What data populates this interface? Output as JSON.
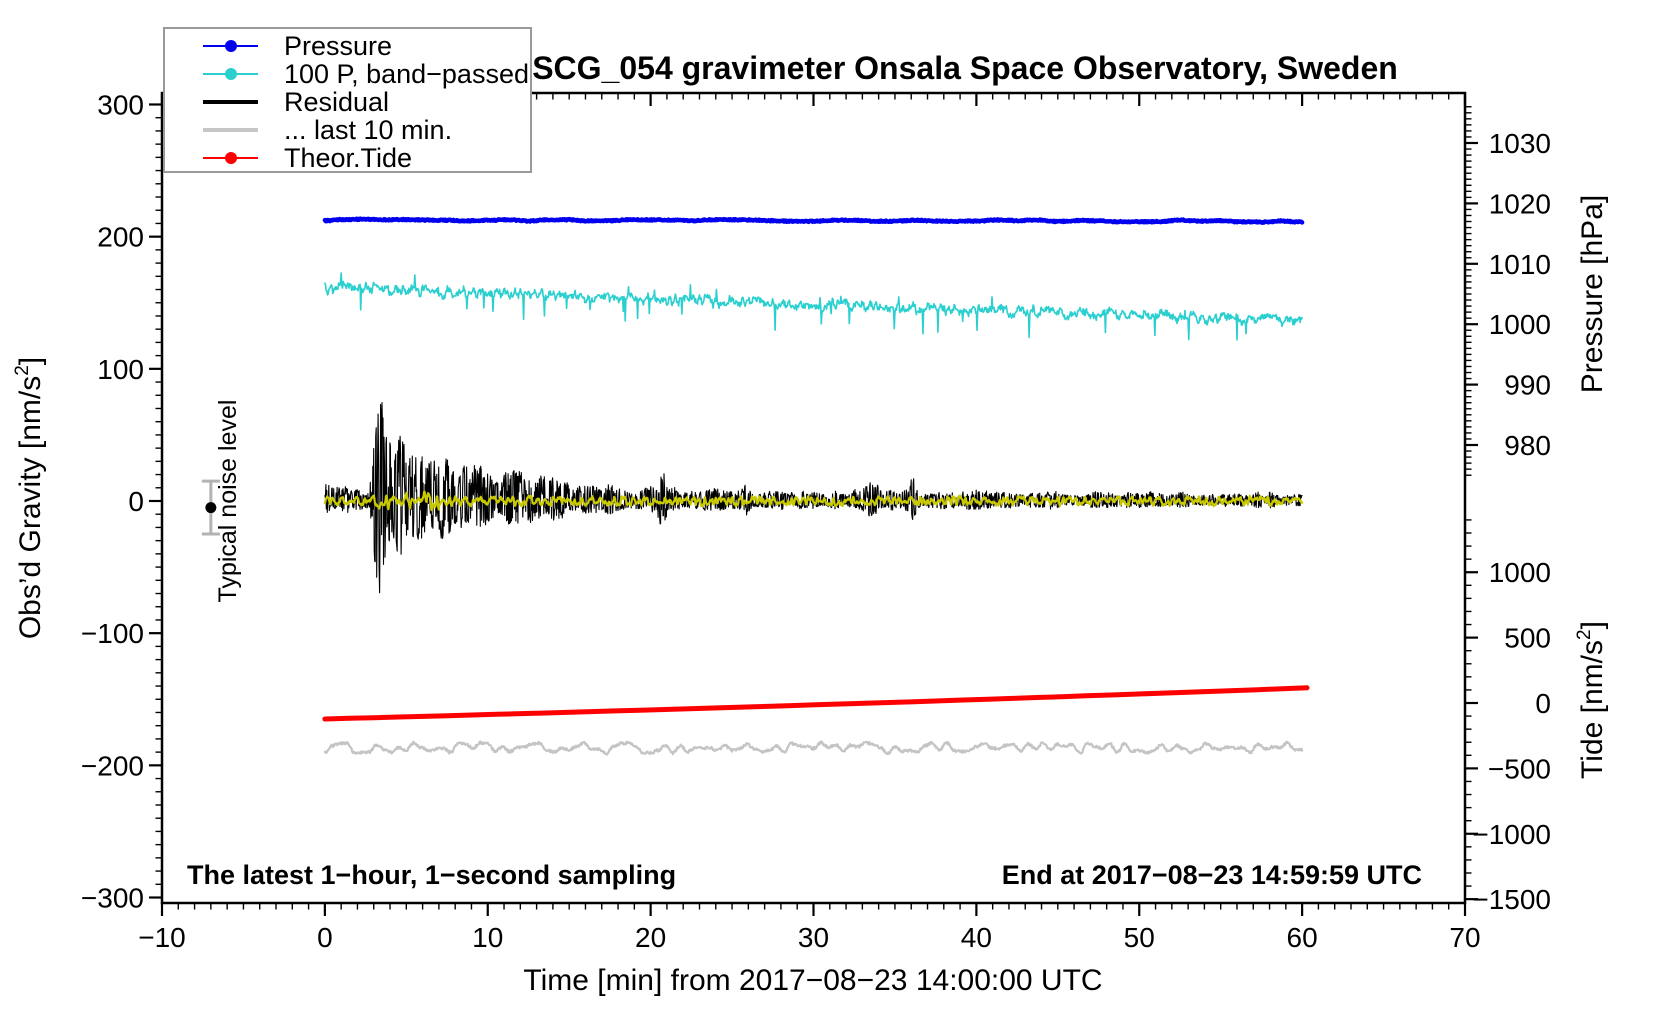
{
  "title": "SCG_054 gravimeter Onsala Space Observatory, Sweden",
  "annotations": {
    "sampling_note": "The latest 1−hour, 1−second sampling",
    "end_note": "End at 2017−08−23 14:59:59 UTC",
    "noise_marker": {
      "label": "Typical noise level",
      "t_min": -7,
      "value": -5,
      "error": 20
    }
  },
  "legend": {
    "items": [
      {
        "label": "Pressure",
        "color": "#0000ee",
        "dot": true,
        "lw": 2
      },
      {
        "label": "100 P, band−passed",
        "color": "#2bcfcf",
        "dot": true,
        "lw": 2
      },
      {
        "label": "Residual",
        "color": "#000000",
        "dot": false,
        "lw": 4
      },
      {
        "label": "... last 10 min.",
        "color": "#c6c6c6",
        "dot": false,
        "lw": 4
      },
      {
        "label": "Theor.Tide",
        "color": "#ff0000",
        "dot": true,
        "lw": 2
      }
    ]
  },
  "axes": {
    "x": {
      "label": "Time [min] from 2017−08−23 14:00:00 UTC",
      "min": -10,
      "max": 70,
      "minor_step": 1,
      "tick_values": [
        -10,
        0,
        10,
        20,
        30,
        40,
        50,
        60,
        70
      ],
      "tick_labels": [
        "−10",
        "0",
        "10",
        "20",
        "30",
        "40",
        "50",
        "60",
        "70"
      ]
    },
    "gravity": {
      "label_main": "Obs’d Gravity [nm/s",
      "label_sup": "2",
      "label_close": "]",
      "min": -300,
      "max": 300,
      "minor_step": 10,
      "tick_values": [
        -300,
        -200,
        -100,
        0,
        100,
        200,
        300
      ],
      "tick_labels": [
        "−300",
        "−200",
        "−100",
        "0",
        "100",
        "200",
        "300"
      ]
    },
    "pressure": {
      "label": "Pressure [hPa]",
      "min": 975,
      "max": 1036,
      "minor_step": 1,
      "tick_values": [
        980,
        990,
        1000,
        1010,
        1020,
        1030
      ],
      "tick_labels": [
        "980",
        "990",
        "1000",
        "1010",
        "1020",
        "1030"
      ]
    },
    "tide": {
      "label_main": "Tide [nm/s",
      "label_sup": "2",
      "label_close": "]",
      "min": -1500,
      "max": 1400,
      "minor_step": 100,
      "tick_values": [
        -1500,
        -1000,
        -500,
        0,
        500,
        1000
      ],
      "tick_labels": [
        "−1500",
        "−1000",
        "−500",
        "0",
        "500",
        "1000"
      ]
    }
  },
  "chart_data": {
    "type": "line",
    "x_unit": "minutes after 2017-08-23 14:00:00 UTC",
    "series": [
      {
        "name": "residual_last10",
        "yaxis": "gravity",
        "color": "#c4c4c4",
        "width": 2.2,
        "gen": {
          "kind": "flat",
          "t0": 0,
          "t1": 60,
          "dt": 0.04,
          "base": -187,
          "end": -187,
          "smooth_amp": 4.2,
          "smooth_freq": 2.2,
          "jitter": 1.0
        }
      },
      {
        "name": "theor_tide",
        "yaxis": "tide",
        "color": "#ff0000",
        "width": 5,
        "gen": {
          "kind": "curve",
          "t0": 0,
          "t1": 60.3,
          "start": -122,
          "end": 116,
          "bow": -11
        }
      },
      {
        "name": "band_passed_pressure_x100",
        "yaxis": "gravity",
        "color": "#2bcfcf",
        "width": 1.6,
        "gen": {
          "kind": "spiky_decline",
          "t0": 0,
          "t1": 60,
          "dt": 0.04,
          "base": 161,
          "end": 136,
          "smooth_amp": 3.5,
          "smooth_freq": 6,
          "jitter": 2.4,
          "spike_prob": 0.018,
          "spike_min": 8,
          "spike_max": 20
        }
      },
      {
        "name": "residual",
        "yaxis": "gravity",
        "color": "#000000",
        "width": 1.1,
        "gen": {
          "kind": "burst",
          "t0": 0,
          "t1": 60,
          "dt": 0.03,
          "center": 0,
          "min_amp": 3,
          "neg_scale": 0.8,
          "envelope": [
            [
              0,
              13
            ],
            [
              2.7,
              13
            ],
            [
              2.85,
              35
            ],
            [
              3.1,
              80
            ],
            [
              3.4,
              97
            ],
            [
              3.9,
              90
            ],
            [
              4.4,
              78
            ],
            [
              5,
              64
            ],
            [
              6,
              52
            ],
            [
              7,
              46
            ],
            [
              8,
              42
            ],
            [
              9,
              35
            ],
            [
              10,
              31
            ],
            [
              11,
              28
            ],
            [
              12,
              25
            ],
            [
              13,
              22
            ],
            [
              14,
              19
            ],
            [
              15,
              18
            ],
            [
              16,
              16
            ],
            [
              18,
              14
            ],
            [
              20,
              13
            ],
            [
              22,
              12
            ],
            [
              25,
              11
            ],
            [
              28,
              10
            ],
            [
              32,
              10
            ],
            [
              36,
              9
            ],
            [
              40,
              9
            ],
            [
              45,
              8
            ],
            [
              50,
              8
            ],
            [
              55,
              7
            ],
            [
              60,
              7
            ]
          ],
          "aftershocks": [
            [
              20.7,
              14,
              0.3
            ],
            [
              25.8,
              12,
              0.25
            ],
            [
              33.6,
              15,
              0.4
            ],
            [
              36.1,
              11,
              0.3
            ]
          ]
        }
      },
      {
        "name": "residual_filtered",
        "yaxis": "gravity",
        "color": "#c9c900",
        "width": 2.2,
        "gen": {
          "kind": "flat",
          "t0": 0,
          "t1": 60,
          "dt": 0.03,
          "base": 0,
          "end": 0,
          "smooth_amp": 3.4,
          "smooth_freq": 9,
          "jitter": 0.8,
          "boost": [
            2.7,
            7,
            2.2
          ]
        }
      },
      {
        "name": "pressure",
        "yaxis": "pressure",
        "color": "#0000ee",
        "width": 4.5,
        "gen": {
          "kind": "flat",
          "t0": 0,
          "t1": 60,
          "dt": 0.05,
          "base": 1017.3,
          "end": 1017.05,
          "smooth_amp": 0.18,
          "smooth_freq": 0.8,
          "jitter": 0.1
        }
      }
    ]
  }
}
